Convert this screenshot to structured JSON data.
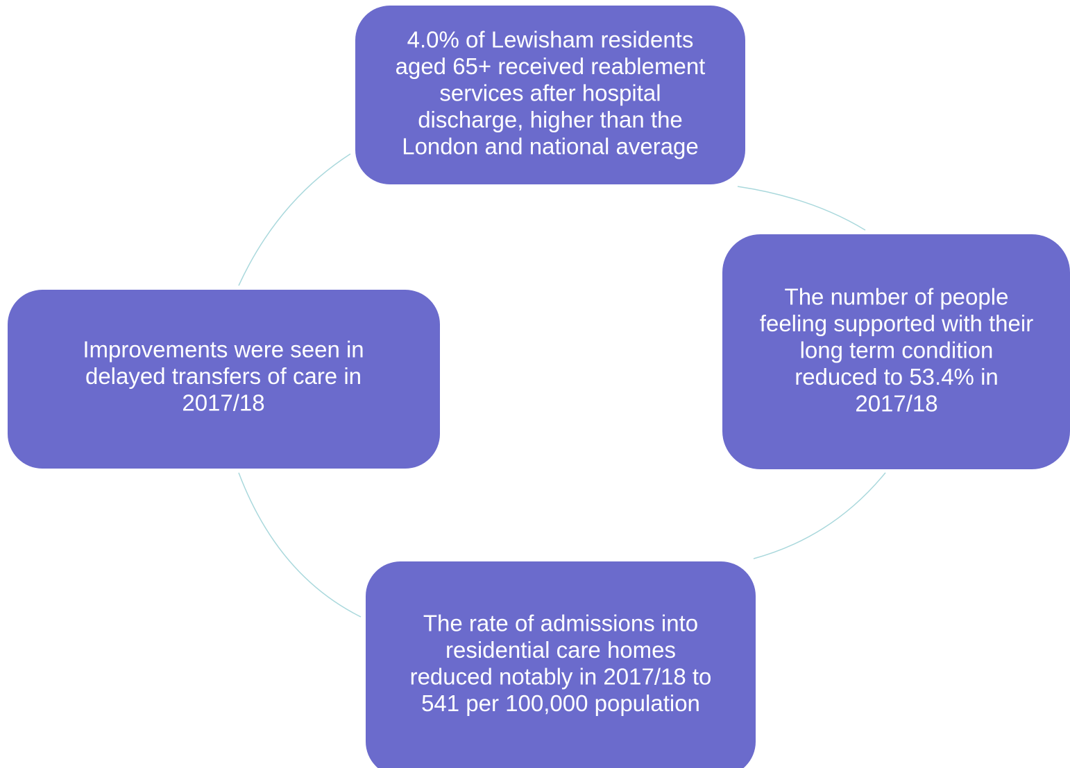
{
  "nodes": [
    {
      "lines": [
        "4.0% of Lewisham residents",
        "aged 65+ received reablement",
        "services after hospital",
        "discharge, higher than the",
        "London and national average"
      ]
    },
    {
      "lines": [
        "The number of people",
        "feeling supported with their",
        "long term condition",
        "reduced to 53.4% in",
        "2017/18"
      ]
    },
    {
      "lines": [
        "The rate of admissions into",
        "residential care homes",
        "reduced notably in 2017/18 to",
        "541 per 100,000 population"
      ]
    },
    {
      "lines": [
        "Improvements were seen in",
        "delayed transfers of care in",
        "2017/18"
      ]
    }
  ]
}
